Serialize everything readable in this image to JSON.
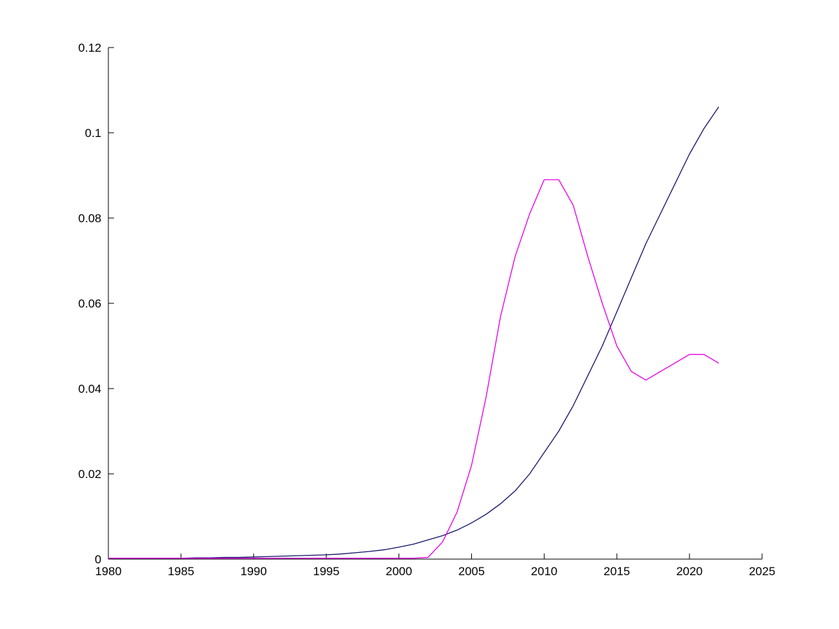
{
  "chart_data": {
    "type": "line",
    "title": "",
    "xlabel": "",
    "ylabel": "",
    "xlim": [
      1980,
      2025
    ],
    "ylim": [
      0,
      0.12
    ],
    "grid": false,
    "legend_position": "none",
    "x_ticks": [
      1980,
      1985,
      1990,
      1995,
      2000,
      2005,
      2010,
      2015,
      2020,
      2025
    ],
    "x_tick_labels": [
      "1980",
      "1985",
      "1990",
      "1995",
      "2000",
      "2005",
      "2010",
      "2015",
      "2020",
      "2025"
    ],
    "y_ticks": [
      0,
      0.02,
      0.04,
      0.06,
      0.08,
      0.1,
      0.12
    ],
    "y_tick_labels": [
      "0",
      "0.02",
      "0.04",
      "0.06",
      "0.08",
      "0.1",
      "0.12"
    ],
    "x": [
      1980,
      1981,
      1982,
      1983,
      1984,
      1985,
      1986,
      1987,
      1988,
      1989,
      1990,
      1991,
      1992,
      1993,
      1994,
      1995,
      1996,
      1997,
      1998,
      1999,
      2000,
      2001,
      2002,
      2003,
      2004,
      2005,
      2006,
      2007,
      2008,
      2009,
      2010,
      2011,
      2012,
      2013,
      2014,
      2015,
      2016,
      2017,
      2018,
      2019,
      2020,
      2021,
      2022
    ],
    "series": [
      {
        "name": "dark-blue-series",
        "color": "#16166b",
        "values": [
          0.0002,
          0.0002,
          0.0002,
          0.0002,
          0.0002,
          0.0002,
          0.0003,
          0.0003,
          0.0004,
          0.0004,
          0.0005,
          0.0006,
          0.0007,
          0.0008,
          0.0009,
          0.001,
          0.0012,
          0.0015,
          0.0018,
          0.0022,
          0.0028,
          0.0035,
          0.0045,
          0.0055,
          0.0068,
          0.0085,
          0.0105,
          0.013,
          0.016,
          0.02,
          0.025,
          0.03,
          0.036,
          0.043,
          0.05,
          0.058,
          0.066,
          0.074,
          0.081,
          0.088,
          0.095,
          0.101,
          0.106
        ]
      },
      {
        "name": "magenta-series",
        "color": "#e800e8",
        "values": [
          0.0002,
          0.0002,
          0.0002,
          0.0002,
          0.0002,
          0.0002,
          0.0002,
          0.0002,
          0.0002,
          0.0002,
          0.0002,
          0.0002,
          0.0002,
          0.0002,
          0.0002,
          0.0002,
          0.0002,
          0.0002,
          0.0002,
          0.0002,
          0.0002,
          0.0002,
          0.0004,
          0.004,
          0.011,
          0.022,
          0.038,
          0.057,
          0.071,
          0.081,
          0.089,
          0.089,
          0.083,
          0.071,
          0.06,
          0.05,
          0.044,
          0.042,
          0.044,
          0.046,
          0.048,
          0.048,
          0.046
        ]
      }
    ],
    "axis_color": "#000000"
  }
}
